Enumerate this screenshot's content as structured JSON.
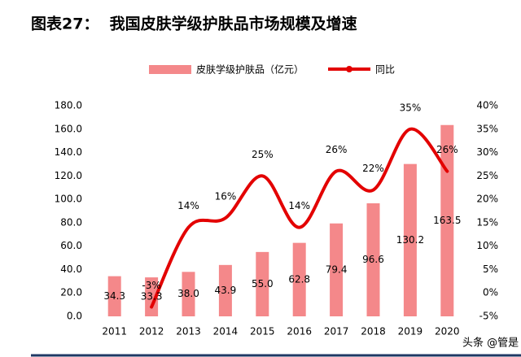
{
  "chart_data": {
    "type": "bar_line",
    "title": "图表27：  我国皮肤学级护肤品市场规模及增速",
    "categories": [
      "2011",
      "2012",
      "2013",
      "2014",
      "2015",
      "2016",
      "2017",
      "2018",
      "2019",
      "2020"
    ],
    "series": [
      {
        "name": "皮肤学级护肤品（亿元）",
        "type": "bar",
        "color": "#f4888a",
        "values": [
          34.3,
          33.3,
          38.0,
          43.9,
          55.0,
          62.8,
          79.4,
          96.6,
          130.2,
          163.5
        ],
        "value_labels": [
          "34.3",
          "33.3",
          "38.0",
          "43.9",
          "55.0",
          "62.8",
          "79.4",
          "96.6",
          "130.2",
          "163.5"
        ]
      },
      {
        "name": "同比",
        "type": "line",
        "axis": "y2",
        "color": "#e30000",
        "values": [
          null,
          -3,
          14,
          16,
          25,
          14,
          26,
          22,
          35,
          26
        ],
        "value_labels": [
          null,
          "-3%",
          "14%",
          "16%",
          "25%",
          "14%",
          "26%",
          "22%",
          "35%",
          "26%"
        ]
      }
    ],
    "ylim": [
      0,
      180
    ],
    "yticks": [
      {
        "value": 0,
        "label": "0.0"
      },
      {
        "value": 20,
        "label": "20.0"
      },
      {
        "value": 40,
        "label": "40.0"
      },
      {
        "value": 60,
        "label": "60.0"
      },
      {
        "value": 80,
        "label": "80.0"
      },
      {
        "value": 100,
        "label": "100.0"
      },
      {
        "value": 120,
        "label": "120.0"
      },
      {
        "value": 140,
        "label": "140.0"
      },
      {
        "value": 160,
        "label": "160.0"
      },
      {
        "value": 180,
        "label": "180.0"
      }
    ],
    "y2lim": [
      -5,
      40
    ],
    "y2ticks": [
      {
        "value": -5,
        "label": "-5%"
      },
      {
        "value": 0,
        "label": "0%"
      },
      {
        "value": 5,
        "label": "5%"
      },
      {
        "value": 10,
        "label": "10%"
      },
      {
        "value": 15,
        "label": "15%"
      },
      {
        "value": 20,
        "label": "20%"
      },
      {
        "value": 25,
        "label": "25%"
      },
      {
        "value": 30,
        "label": "30%"
      },
      {
        "value": 35,
        "label": "35%"
      },
      {
        "value": 40,
        "label": "40%"
      }
    ],
    "legend": "top",
    "grid": false
  },
  "watermark": "头条 @管是"
}
